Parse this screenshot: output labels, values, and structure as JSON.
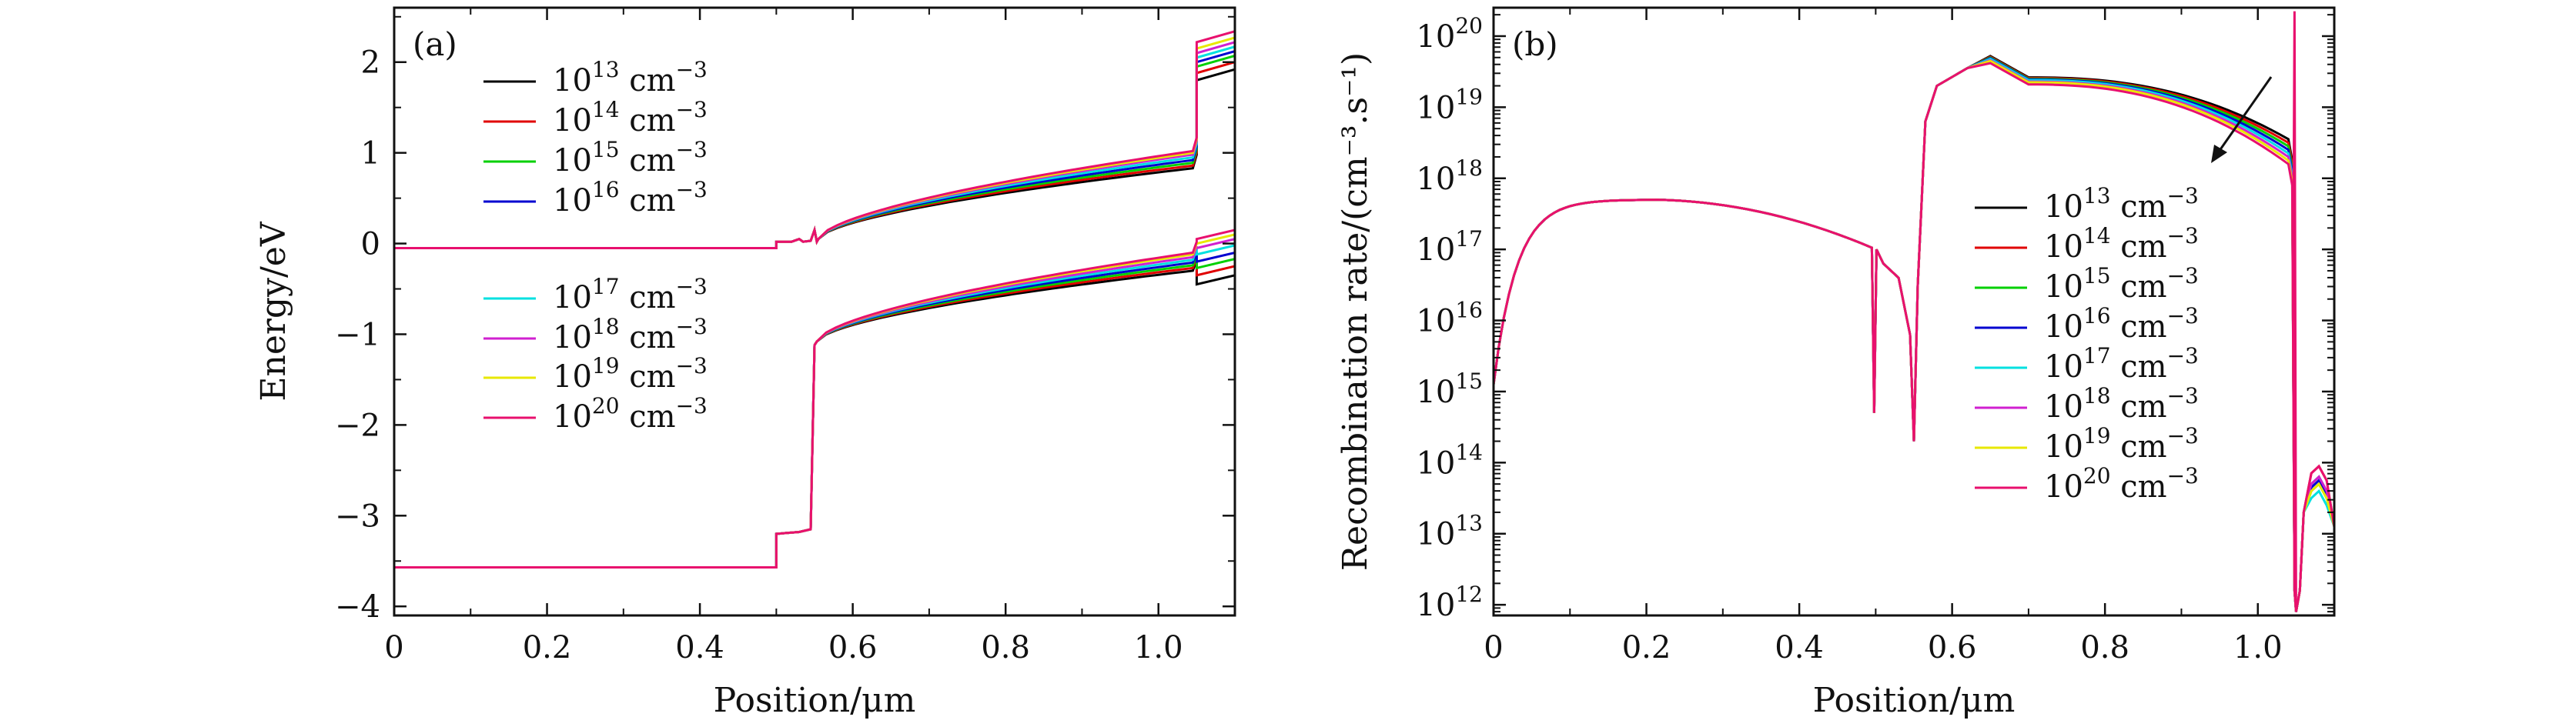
{
  "chart_data": [
    {
      "type": "line",
      "panel_label": "(a)",
      "xlabel": "Position/μm",
      "ylabel": "Energy/eV",
      "xlim": [
        0,
        1.1
      ],
      "ylim": [
        -4.1,
        2.6
      ],
      "xticks": [
        "0",
        "0.2",
        "0.4",
        "0.6",
        "0.8",
        "1.0"
      ],
      "yticks": [
        "2",
        "1",
        "0",
        "−1",
        "−2",
        "−3",
        "−4"
      ],
      "legend_entries": [
        "10¹³ cm⁻³",
        "10¹⁴ cm⁻³",
        "10¹⁵ cm⁻³",
        "10¹⁶ cm⁻³",
        "10¹⁷ cm⁻³",
        "10¹⁸ cm⁻³",
        "10¹⁹ cm⁻³",
        "10²⁰ cm⁻³"
      ],
      "series_colors": [
        "#000000",
        "#e00000",
        "#00d000",
        "#0000d0",
        "#00e0e0",
        "#d020d0",
        "#e8e800",
        "#e8106e"
      ],
      "conduction_band_end_at_1_05": [
        0.83,
        0.86,
        0.89,
        0.92,
        0.95,
        0.98,
        1.0,
        1.02
      ],
      "conduction_band_right_layer": [
        1.8,
        1.88,
        1.95,
        2.0,
        2.05,
        2.1,
        2.15,
        2.22
      ],
      "valence_band_end_at_1_05": [
        -0.3,
        -0.27,
        -0.24,
        -0.21,
        -0.18,
        -0.15,
        -0.12,
        -0.1
      ],
      "valence_band_right_layer": [
        -0.45,
        -0.35,
        -0.27,
        -0.2,
        -0.12,
        -0.05,
        0.0,
        0.05
      ]
    },
    {
      "type": "line",
      "panel_label": "(b)",
      "xlabel": "Position/μm",
      "ylabel": "Recombination rate/(cm⁻³.s⁻¹)",
      "yscale": "log",
      "xlim": [
        0,
        1.1
      ],
      "ylim_log10": [
        11.85,
        20.4
      ],
      "xticks": [
        "0",
        "0.2",
        "0.4",
        "0.6",
        "0.8",
        "1.0"
      ],
      "ytick_mantissa": [
        "10",
        "10",
        "10",
        "10",
        "10",
        "10",
        "10",
        "10",
        "10"
      ],
      "ytick_exponents": [
        "20",
        "19",
        "18",
        "17",
        "16",
        "15",
        "14",
        "13",
        "12"
      ],
      "legend_entries": [
        "10¹³ cm⁻³",
        "10¹⁴ cm⁻³",
        "10¹⁵ cm⁻³",
        "10¹⁶ cm⁻³",
        "10¹⁷ cm⁻³",
        "10¹⁸ cm⁻³",
        "10¹⁹ cm⁻³",
        "10²⁰ cm⁻³"
      ],
      "series_colors": [
        "#000000",
        "#e00000",
        "#00d000",
        "#0000d0",
        "#00e0e0",
        "#d020d0",
        "#e8e800",
        "#e8106e"
      ],
      "peak_log10_near_0_65": [
        19.72,
        19.71,
        19.7,
        19.69,
        19.68,
        19.66,
        19.65,
        19.62
      ],
      "log10_at_1_04": [
        18.55,
        18.5,
        18.45,
        18.4,
        18.35,
        18.3,
        18.25,
        18.2
      ],
      "right_layer_peak_log10": [
        13.8,
        13.95,
        13.7,
        13.75,
        13.6,
        13.8,
        13.7,
        13.95
      ]
    }
  ],
  "legend_unit": "cm",
  "legend_unit_exp": "−3",
  "legend_mantissa": "10",
  "legend_exponents": [
    "13",
    "14",
    "15",
    "16",
    "17",
    "18",
    "19",
    "20"
  ]
}
